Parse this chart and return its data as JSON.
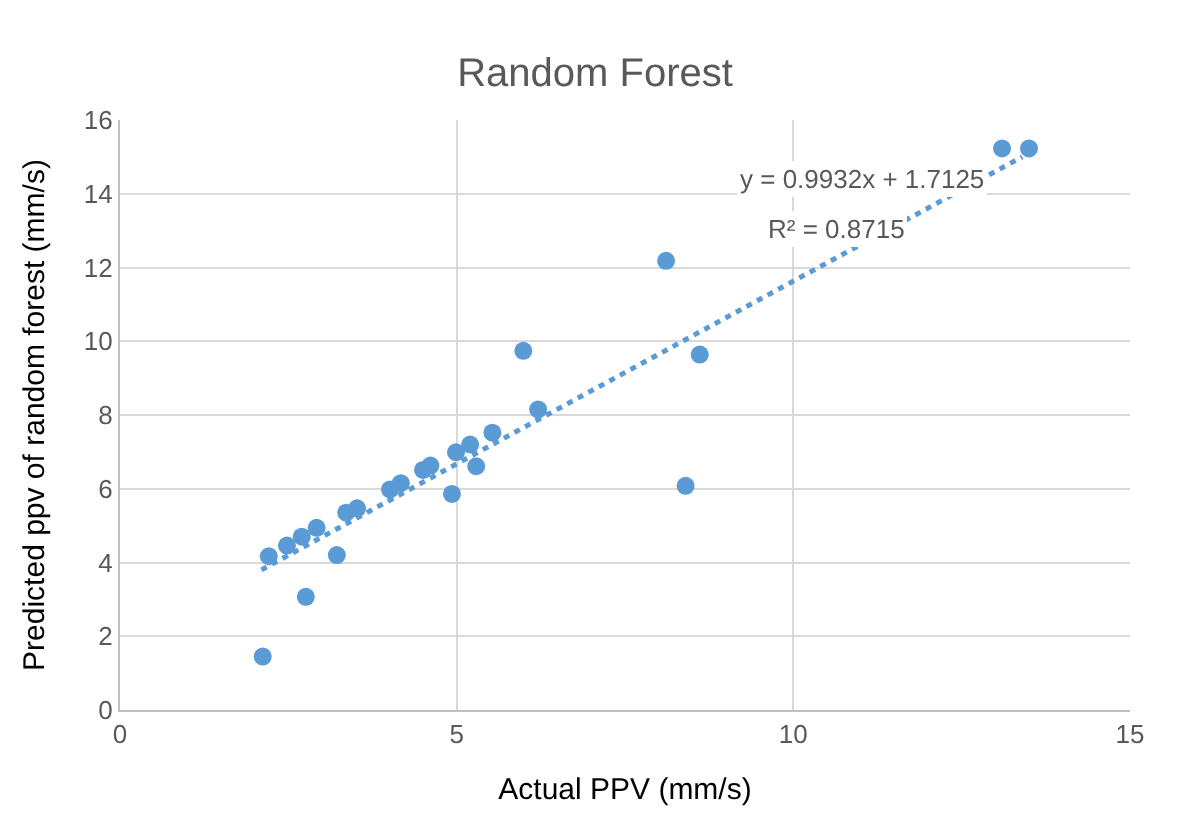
{
  "chart_data": {
    "type": "scatter",
    "title": "Random Forest",
    "xlabel": "Actual PPV (mm/s)",
    "ylabel": "Predicted ppv of random forest (mm/s)",
    "xlim": [
      0,
      15
    ],
    "xticks": [
      0,
      5,
      10,
      15
    ],
    "ylim": [
      0,
      16
    ],
    "yticks": [
      0,
      2,
      4,
      6,
      8,
      10,
      12,
      14,
      16
    ],
    "grid": true,
    "marker": "circle",
    "series": [
      {
        "color": "#5b9bd5",
        "x": [
          2.12,
          2.76,
          3.22,
          2.21,
          2.48,
          2.7,
          2.92,
          3.36,
          3.52,
          4.01,
          4.17,
          4.5,
          4.61,
          4.93,
          4.99,
          5.2,
          5.29,
          5.53,
          5.99,
          6.21,
          8.11,
          8.61,
          8.4,
          13.1,
          13.5
        ],
        "values": [
          1.45,
          3.07,
          4.2,
          4.17,
          4.46,
          4.7,
          4.94,
          5.35,
          5.47,
          5.98,
          6.15,
          6.51,
          6.63,
          5.86,
          6.99,
          7.2,
          6.61,
          7.52,
          9.74,
          8.15,
          12.18,
          9.64,
          6.08,
          15.23,
          15.23
        ]
      },
      {
        "type": "line",
        "color": "#5b9bd5",
        "line_style": "dotted",
        "marker": "none",
        "x": [
          2.1,
          13.4
        ],
        "values": [
          3.8,
          15.0
        ]
      }
    ],
    "annotations": [
      "y = 0.9932x + 1.7125",
      "R² = 0.8715"
    ]
  }
}
